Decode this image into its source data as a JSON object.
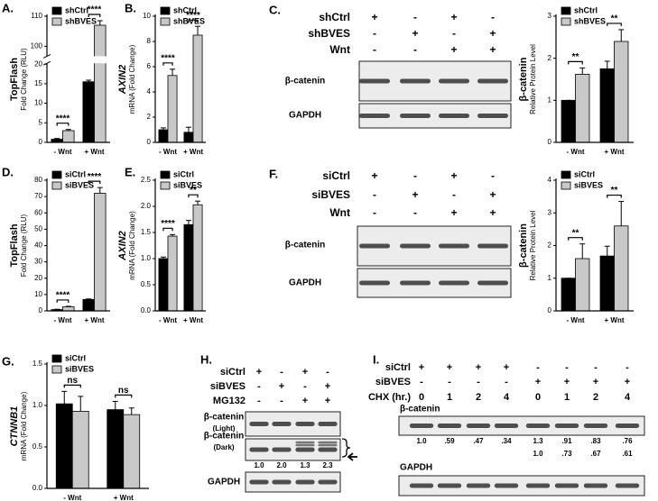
{
  "chart_data": [
    {
      "type": "bar",
      "panel": "A.",
      "y_label": "TopFlash",
      "y_sublabel": "Fold Change (RLU)",
      "y_label_style": "normal",
      "categories": [
        "- Wnt",
        "+ Wnt"
      ],
      "series": [
        {
          "name": "shCtrl",
          "color": "#000000",
          "values": [
            0.8,
            15.5
          ],
          "errors": [
            0.2,
            0.4
          ]
        },
        {
          "name": "shBVES",
          "color": "#c8c8c8",
          "values": [
            3.0,
            107
          ],
          "errors": [
            0.3,
            1.5
          ]
        }
      ],
      "ylim": [
        0,
        110
      ],
      "axis_break": [
        20,
        97
      ],
      "yticks": [
        0,
        5,
        10,
        15,
        20,
        100,
        110
      ],
      "annotations": [
        "****",
        "****"
      ]
    },
    {
      "type": "bar",
      "panel": "B.",
      "y_label": "AXIN2",
      "y_sublabel": "mRNA (Fold Change)",
      "y_label_style": "italic",
      "categories": [
        "- Wnt",
        "+ Wnt"
      ],
      "series": [
        {
          "name": "shCtrl",
          "color": "#000000",
          "values": [
            1.0,
            0.8
          ],
          "errors": [
            0.15,
            0.4
          ]
        },
        {
          "name": "shBVES",
          "color": "#c8c8c8",
          "values": [
            5.3,
            8.5
          ],
          "errors": [
            0.5,
            0.7
          ]
        }
      ],
      "ylim": [
        0,
        10
      ],
      "yticks": [
        0,
        2,
        4,
        6,
        8,
        10
      ],
      "annotations": [
        "****",
        "****"
      ]
    },
    {
      "type": "bar",
      "y_label": "β-catenin",
      "y_sublabel": "Relative Protein Level",
      "y_label_style": "normal",
      "categories": [
        "- Wnt",
        "+ Wnt"
      ],
      "series": [
        {
          "name": "shCtrl",
          "color": "#000000",
          "values": [
            1.0,
            1.75
          ],
          "errors": [
            0,
            0.18
          ]
        },
        {
          "name": "shBVES",
          "color": "#c8c8c8",
          "values": [
            1.62,
            2.4
          ],
          "errors": [
            0.15,
            0.28
          ]
        }
      ],
      "ylim": [
        0,
        3
      ],
      "yticks": [
        0,
        1,
        2,
        3
      ],
      "annotations": [
        "**",
        "**"
      ]
    },
    {
      "type": "bar",
      "panel": "D.",
      "y_label": "TopFlash",
      "y_sublabel": "Fold Change (RLU)",
      "y_label_style": "normal",
      "categories": [
        "- Wnt",
        "+ Wnt"
      ],
      "series": [
        {
          "name": "siCtrl",
          "color": "#000000",
          "values": [
            0.8,
            7.0
          ],
          "errors": [
            0.2,
            0.3
          ]
        },
        {
          "name": "siBVES",
          "color": "#c8c8c8",
          "values": [
            2.5,
            72
          ],
          "errors": [
            0.3,
            3.5
          ]
        }
      ],
      "ylim": [
        0,
        80
      ],
      "yticks": [
        0,
        10,
        20,
        30,
        40,
        50,
        60,
        70,
        80
      ],
      "annotations": [
        "****",
        "****"
      ]
    },
    {
      "type": "bar",
      "panel": "E.",
      "y_label": "AXIN2",
      "y_sublabel": "mRNA (Fold Change)",
      "y_label_style": "italic",
      "categories": [
        "- Wnt",
        "+ Wnt"
      ],
      "series": [
        {
          "name": "siCtrl",
          "color": "#000000",
          "values": [
            1.0,
            1.65
          ],
          "errors": [
            0.03,
            0.08
          ]
        },
        {
          "name": "siBVES",
          "color": "#c8c8c8",
          "values": [
            1.43,
            2.03
          ],
          "errors": [
            0.03,
            0.07
          ]
        }
      ],
      "ylim": [
        0,
        2.5
      ],
      "yticks": [
        {
          "value": 0,
          "label": "0.0"
        },
        0.5,
        {
          "value": 1,
          "label": "1.0"
        },
        1.5,
        {
          "value": 2,
          "label": "2.0"
        },
        2.5
      ],
      "annotations": [
        "****",
        "**"
      ]
    },
    {
      "type": "bar",
      "y_label": "β-catenin",
      "y_sublabel": "Relative Protein Level",
      "y_label_style": "normal",
      "categories": [
        "- Wnt",
        "+ Wnt"
      ],
      "series": [
        {
          "name": "siCtrl",
          "color": "#000000",
          "values": [
            1.0,
            1.68
          ],
          "errors": [
            0,
            0.3
          ]
        },
        {
          "name": "siBVES",
          "color": "#c8c8c8",
          "values": [
            1.6,
            2.6
          ],
          "errors": [
            0.45,
            0.75
          ]
        }
      ],
      "ylim": [
        0,
        4
      ],
      "yticks": [
        0,
        1,
        2,
        3,
        4
      ],
      "annotations": [
        "**",
        "**"
      ]
    },
    {
      "type": "bar",
      "panel": "G.",
      "y_label": "CTNNB1",
      "y_sublabel": "mRNA (Fold Change)",
      "y_label_style": "italic",
      "categories": [
        "- Wnt",
        "+ Wnt"
      ],
      "series": [
        {
          "name": "siCtrl",
          "color": "#000000",
          "values": [
            1.02,
            0.95
          ],
          "errors": [
            0.15,
            0.1
          ]
        },
        {
          "name": "siBVES",
          "color": "#c8c8c8",
          "values": [
            0.93,
            0.89
          ],
          "errors": [
            0.18,
            0.08
          ]
        }
      ],
      "ylim": [
        0,
        1.5
      ],
      "yticks": [
        {
          "value": 0,
          "label": "0.0"
        },
        0.5,
        {
          "value": 1,
          "label": "1.0"
        },
        1.5
      ],
      "annotations": [
        "ns",
        "ns"
      ]
    }
  ],
  "blots": [
    {
      "panel": "C.",
      "conditions": [
        {
          "name": "shCtrl",
          "lanes": [
            "+",
            "-",
            "+",
            "-"
          ]
        },
        {
          "name": "shBVES",
          "lanes": [
            "-",
            "+",
            "-",
            "+"
          ]
        },
        {
          "name": "Wnt",
          "lanes": [
            "-",
            "-",
            "+",
            "+"
          ]
        }
      ],
      "bands": [
        {
          "name": "β-catenin"
        },
        {
          "name": "GAPDH"
        }
      ]
    },
    {
      "panel": "F.",
      "conditions": [
        {
          "name": "siCtrl",
          "lanes": [
            "+",
            "-",
            "+",
            "-"
          ]
        },
        {
          "name": "siBVES",
          "lanes": [
            "-",
            "+",
            "-",
            "+"
          ]
        },
        {
          "name": "Wnt",
          "lanes": [
            "-",
            "-",
            "+",
            "+"
          ]
        }
      ],
      "bands": [
        {
          "name": "β-catenin"
        },
        {
          "name": "GAPDH"
        }
      ]
    },
    {
      "panel": "H.",
      "conditions": [
        {
          "name": "siCtrl",
          "lanes": [
            "+",
            "-",
            "+",
            "-"
          ]
        },
        {
          "name": "siBVES",
          "lanes": [
            "-",
            "+",
            "-",
            "+"
          ]
        },
        {
          "name": "MG132",
          "lanes": [
            "-",
            "-",
            "+",
            "+"
          ]
        }
      ],
      "bands": [
        {
          "name": "β-catenin",
          "sub": "(Light)"
        },
        {
          "name": "β-catenin",
          "sub": "(Dark)"
        },
        {
          "name": "GAPDH"
        }
      ],
      "quantification": [
        [
          "1.0",
          "2.0",
          "1.3",
          "2.3"
        ]
      ]
    },
    {
      "panel": "I.",
      "conditions": [
        {
          "name": "siCtrl",
          "lanes": [
            "+",
            "+",
            "+",
            "+",
            "-",
            "-",
            "-",
            "-"
          ]
        },
        {
          "name": "siBVES",
          "lanes": [
            "-",
            "-",
            "-",
            "-",
            "+",
            "+",
            "+",
            "+"
          ]
        },
        {
          "name": "CHX (hr.)",
          "lanes": [
            "0",
            "1",
            "2",
            "4",
            "0",
            "1",
            "2",
            "4"
          ]
        }
      ],
      "bands": [
        {
          "name": "β-catenin"
        },
        {
          "name": "GAPDH"
        }
      ],
      "quantification": [
        [
          "1.0",
          ".59",
          ".47",
          ".34",
          "1.3",
          ".91",
          ".83",
          ".76"
        ],
        [
          null,
          null,
          null,
          null,
          "1.0",
          ".73",
          ".67",
          ".61"
        ]
      ]
    }
  ]
}
